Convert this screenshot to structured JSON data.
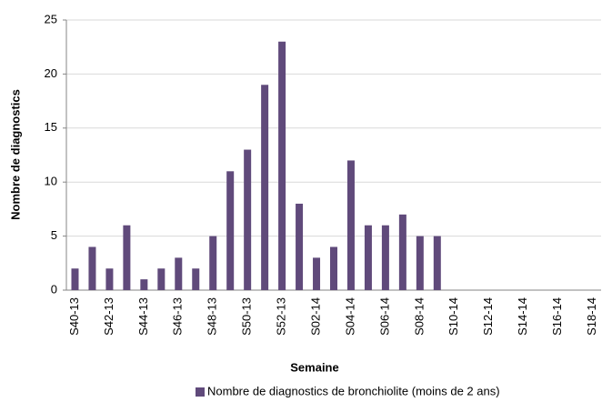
{
  "chart_data": {
    "type": "bar",
    "x_label": "Semaine",
    "y_label": "Nombre de diagnostics",
    "categories": [
      "S40-13",
      null,
      "S42-13",
      null,
      "S44-13",
      null,
      "S46-13",
      null,
      "S48-13",
      null,
      "S50-13",
      null,
      "S52-13",
      null,
      "S02-14",
      null,
      "S04-14",
      null,
      "S06-14",
      null,
      "S08-14",
      null,
      "S10-14",
      null,
      "S12-14",
      null,
      "S14-14",
      null,
      "S16-14",
      null,
      "S18-14"
    ],
    "series": [
      {
        "name": "Nombre de diagnostics de bronchiolite (moins de 2 ans)",
        "color": "#604a7b",
        "values": [
          2,
          4,
          2,
          6,
          1,
          2,
          3,
          2,
          5,
          11,
          13,
          19,
          23,
          8,
          3,
          4,
          12,
          6,
          6,
          7,
          5,
          5,
          null,
          null,
          null,
          null,
          null,
          null,
          null,
          null,
          null
        ]
      }
    ],
    "ylim": [
      0,
      25
    ],
    "yticks": [
      0,
      5,
      10,
      15,
      20,
      25
    ],
    "grid": true,
    "legend": "bottom"
  }
}
